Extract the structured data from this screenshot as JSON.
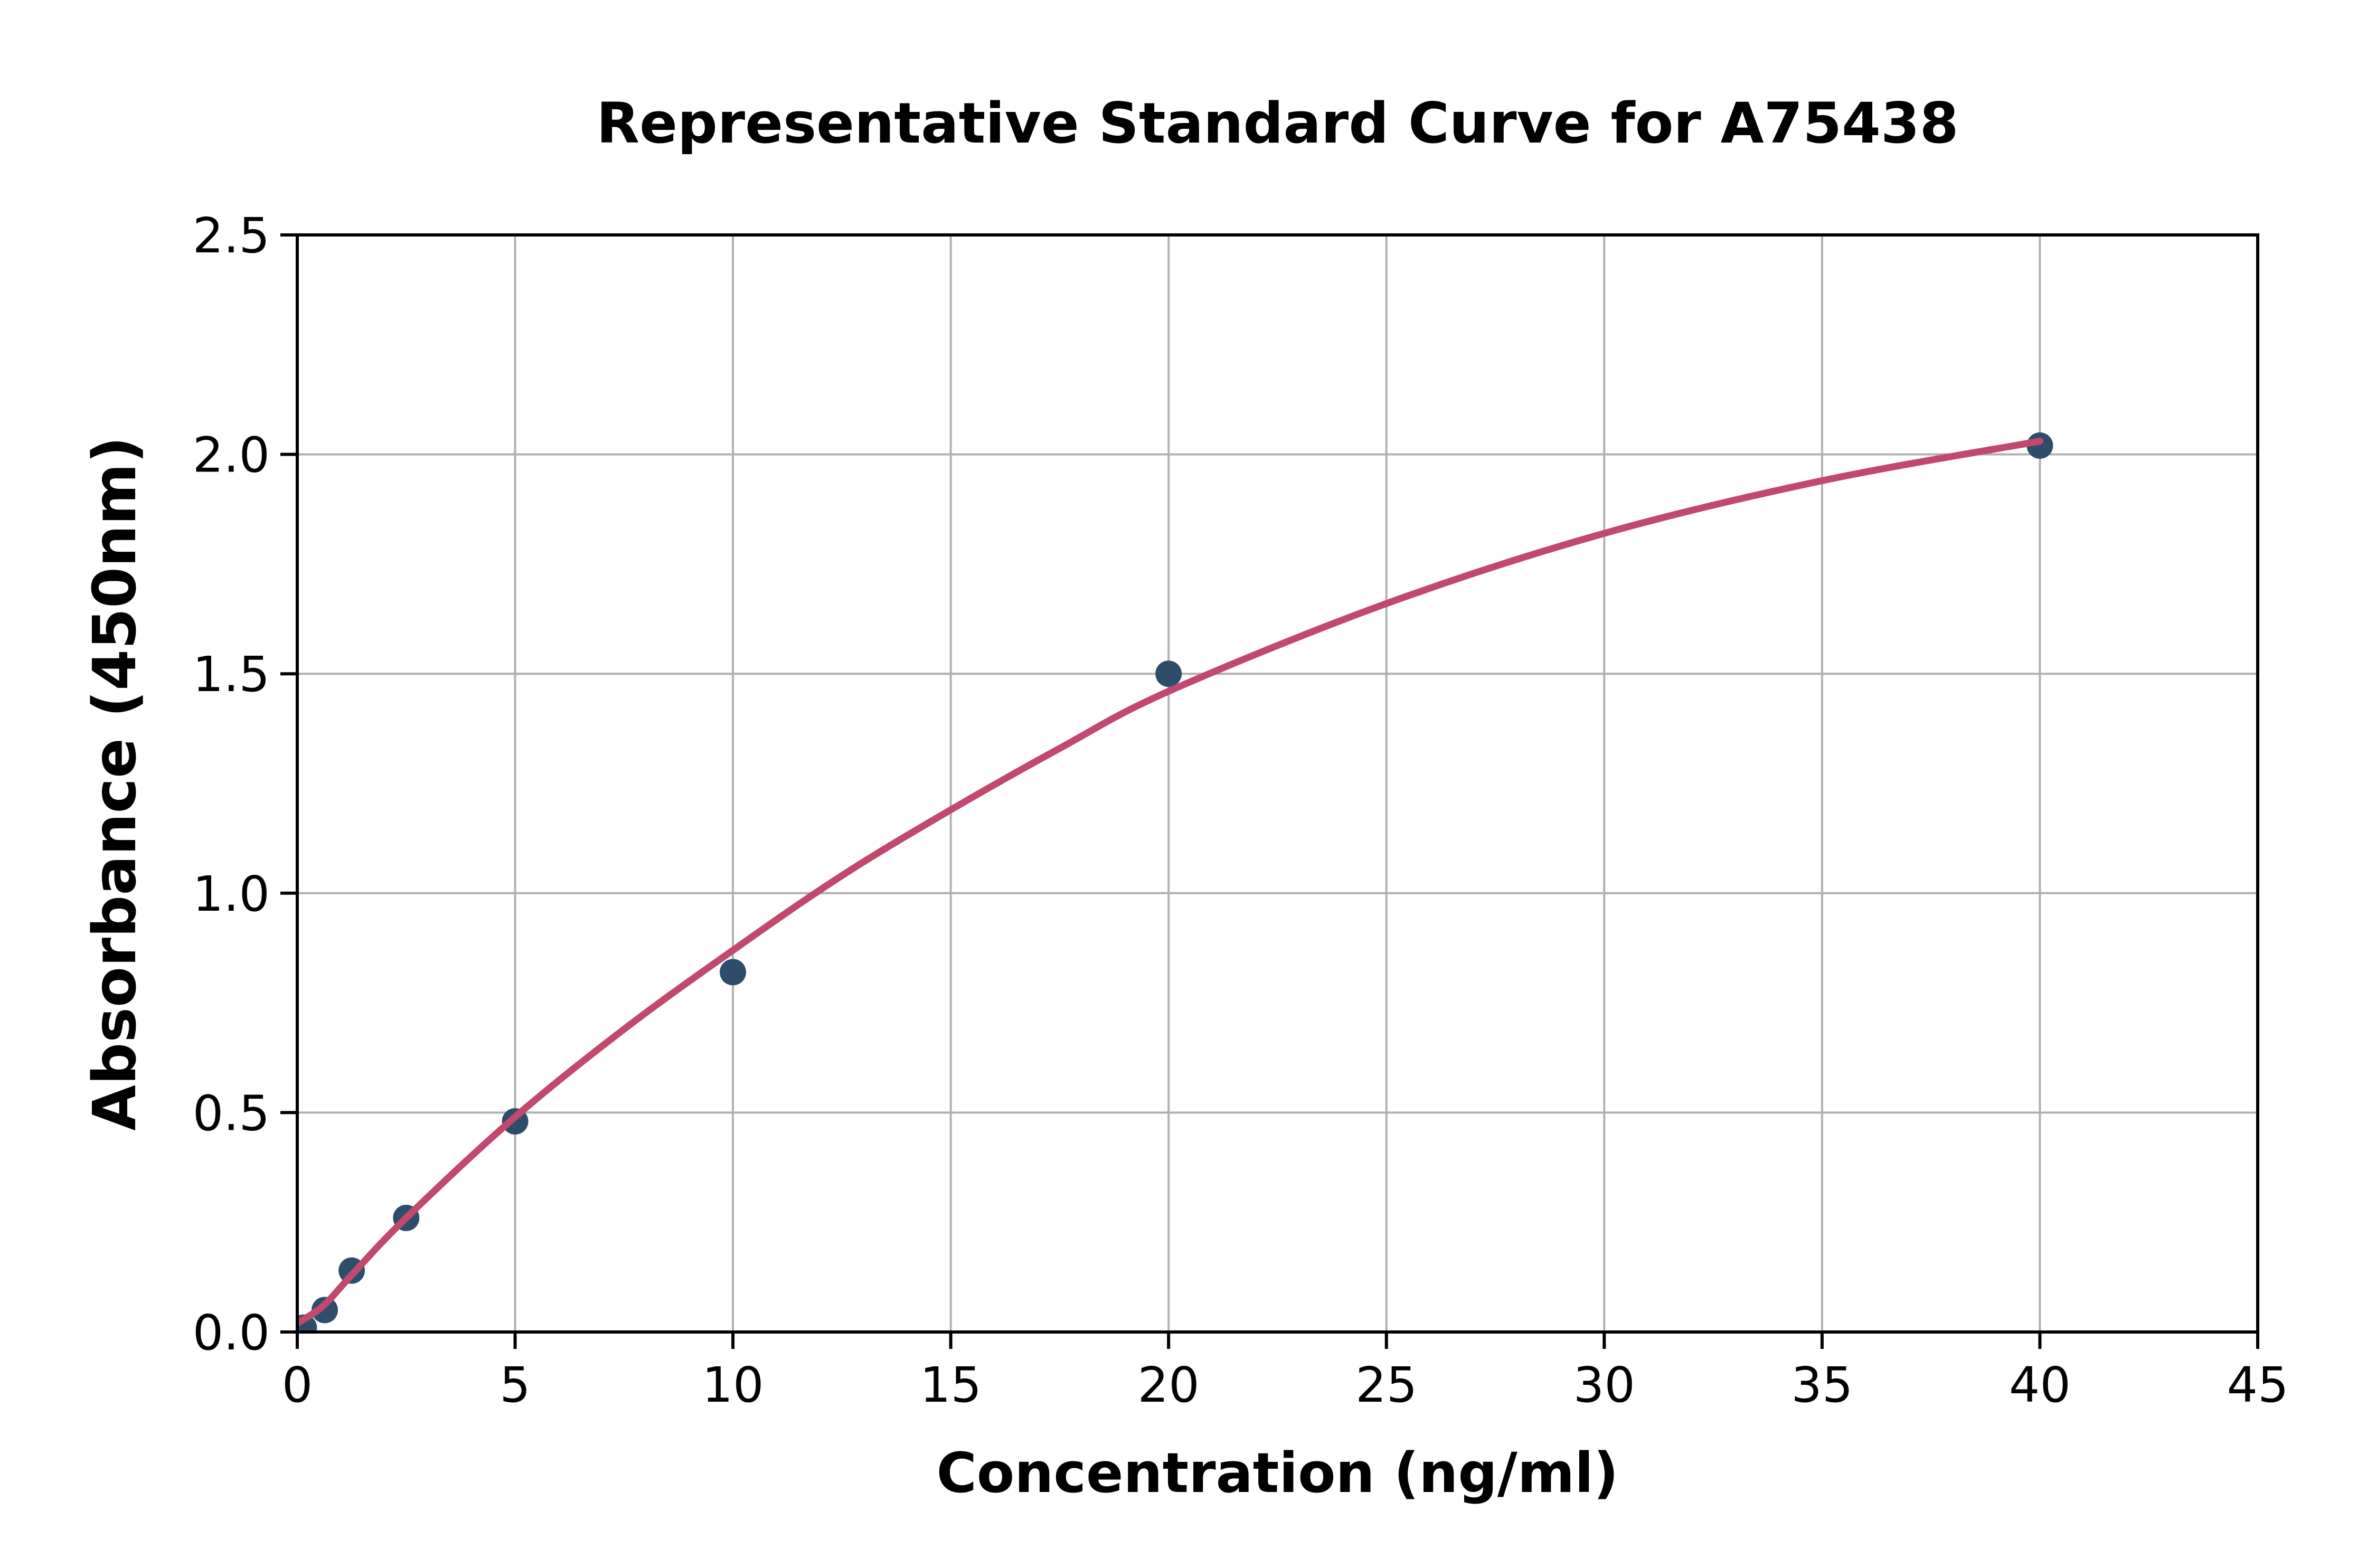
{
  "chart_data": {
    "type": "scatter",
    "title": "Representative Standard Curve for A75438",
    "xlabel": "Concentration (ng/ml)",
    "ylabel": "Absorbance (450nm)",
    "xlim": [
      0,
      45
    ],
    "ylim": [
      0,
      2.5
    ],
    "xticks": [
      0,
      5,
      10,
      15,
      20,
      25,
      30,
      35,
      40,
      45
    ],
    "xtick_labels": [
      "0",
      "5",
      "10",
      "15",
      "20",
      "25",
      "30",
      "35",
      "40",
      "45"
    ],
    "yticks": [
      0,
      0.5,
      1.0,
      1.5,
      2.0,
      2.5
    ],
    "ytick_labels": [
      "0.0",
      "0.5",
      "1.0",
      "1.5",
      "2.0",
      "2.5"
    ],
    "grid": true,
    "legend": "none",
    "points": [
      [
        0.15,
        0.01
      ],
      [
        0.63,
        0.05
      ],
      [
        1.25,
        0.14
      ],
      [
        2.5,
        0.26
      ],
      [
        5,
        0.48
      ],
      [
        10,
        0.82
      ],
      [
        20,
        1.5
      ],
      [
        40,
        2.02
      ]
    ],
    "fit_curve": [
      [
        0,
        0.02
      ],
      [
        0.6,
        0.06
      ],
      [
        1.25,
        0.13
      ],
      [
        2.5,
        0.26
      ],
      [
        5,
        0.49
      ],
      [
        7.5,
        0.69
      ],
      [
        10,
        0.87
      ],
      [
        12.5,
        1.04
      ],
      [
        15,
        1.19
      ],
      [
        17.5,
        1.33
      ],
      [
        20,
        1.46
      ],
      [
        25,
        1.66
      ],
      [
        30,
        1.82
      ],
      [
        35,
        1.94
      ],
      [
        40,
        2.03
      ]
    ],
    "colors": {
      "marker": "#2e4d6b",
      "line": "#c2486e",
      "grid": "#b0b0b0",
      "spine": "#000000",
      "text": "#000000",
      "background": "#ffffff"
    }
  }
}
